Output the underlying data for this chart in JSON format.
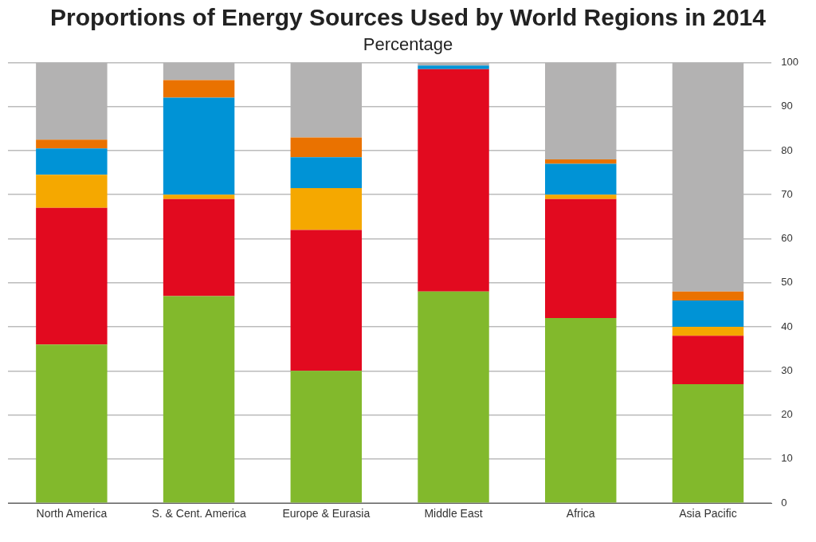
{
  "chart_data": {
    "type": "bar",
    "title": "Proportions of Energy Sources Used by World Regions in 2014",
    "subtitle": "Percentage",
    "categories": [
      "North America",
      "S. & Cent. America",
      "Europe & Eurasia",
      "Middle East",
      "Africa",
      "Asia Pacific"
    ],
    "stacked": true,
    "series": [
      {
        "color": "#82b92c",
        "values": [
          36,
          47,
          30,
          48,
          42,
          27
        ]
      },
      {
        "color": "#e20a1f",
        "values": [
          31,
          22,
          32,
          50.5,
          27,
          11
        ]
      },
      {
        "color": "#f5a800",
        "values": [
          7.5,
          1,
          9.5,
          0,
          1,
          2
        ]
      },
      {
        "color": "#0093d6",
        "values": [
          6,
          22,
          7,
          0.8,
          7,
          6
        ]
      },
      {
        "color": "#ea7200",
        "values": [
          2,
          4,
          4.5,
          0,
          1,
          2
        ]
      },
      {
        "color": "#b3b2b2",
        "values": [
          17.5,
          4,
          17,
          0.7,
          22,
          52
        ]
      }
    ],
    "ylim": [
      0,
      100
    ],
    "yticks": [
      0,
      10,
      20,
      30,
      40,
      50,
      60,
      70,
      80,
      90,
      100
    ],
    "grid": "y",
    "legend": false
  }
}
